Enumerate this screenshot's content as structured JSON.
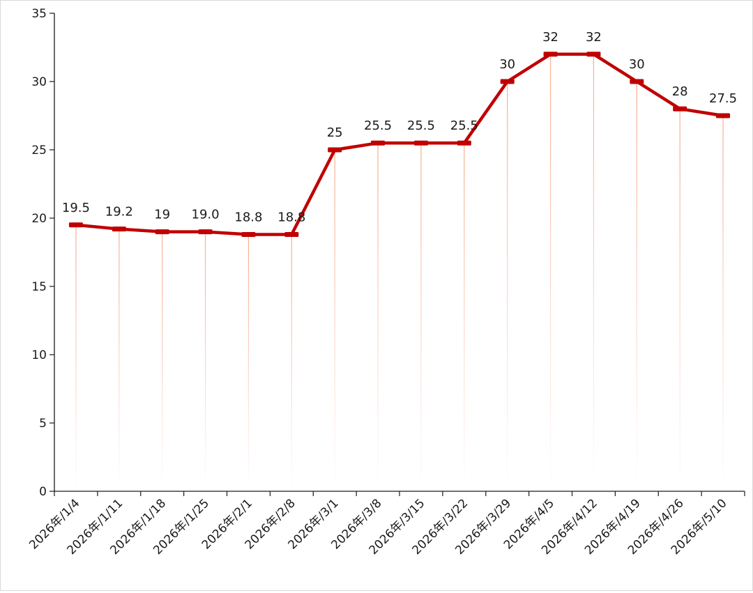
{
  "chart_data": {
    "type": "line",
    "title": "",
    "xlabel": "",
    "ylabel": "",
    "categories": [
      "2026年/1/4",
      "2026年/1/11",
      "2026年/1/18",
      "2026年/1/25",
      "2026年/2/1",
      "2026年/2/8",
      "2026年/3/1",
      "2026年/3/8",
      "2026年/3/15",
      "2026年/3/22",
      "2026年/3/29",
      "2026年/4/5",
      "2026年/4/12",
      "2026年/4/19",
      "2026年/4/26",
      "2026年/5/10"
    ],
    "series": [
      {
        "values": [
          19.5,
          19.2,
          19,
          19.0,
          18.8,
          18.8,
          25,
          25.5,
          25.5,
          25.5,
          30,
          32,
          32,
          30,
          28,
          27.5
        ],
        "data_labels": [
          "19.5",
          "19.2",
          "19",
          "19.0",
          "18.8",
          "18.8",
          "25",
          "25.5",
          "25.5",
          "25.5",
          "30",
          "32",
          "32",
          "30",
          "28",
          "27.5"
        ],
        "color": "#c00000",
        "drop_line_color": "#f4a582"
      }
    ],
    "ylim": [
      0,
      35
    ],
    "yticks": [
      "0",
      "5",
      "10",
      "15",
      "20",
      "25",
      "30",
      "35"
    ],
    "grid": false,
    "legend": "none"
  }
}
